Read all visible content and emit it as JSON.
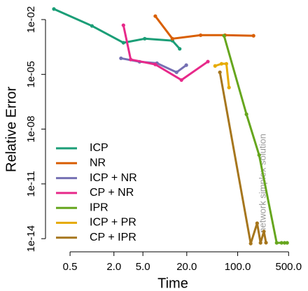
{
  "chart_data": {
    "type": "line",
    "x_label": "Time",
    "y_label": "Relative Error",
    "annotation": "network simplex solution",
    "xlog": true,
    "ylog": true,
    "xlim": [
      0.23,
      740
    ],
    "ylim": [
      1.9e-15,
      0.049
    ],
    "xticks": [
      0.5,
      {
        "value": 2,
        "label": "2.0"
      },
      {
        "value": 5,
        "label": "5.0"
      },
      {
        "value": 20,
        "label": "20.0"
      },
      {
        "value": 100,
        "label": "100.0"
      },
      {
        "value": 500,
        "label": "500.0"
      }
    ],
    "yticks": [
      {
        "value": 0.01,
        "label": "1e-02"
      },
      {
        "value": 1e-05,
        "label": "1e-05"
      },
      {
        "value": 1e-08,
        "label": "1e-08"
      },
      {
        "value": 1e-11,
        "label": "1e-11"
      },
      {
        "value": 1e-14,
        "label": "1e-14"
      }
    ],
    "legend": "left",
    "series": [
      {
        "name": "ICP",
        "color": "#1b9e77",
        "x": [
          0.3,
          1.0,
          2.7,
          5.3,
          12.7,
          16
        ],
        "values": [
          0.038,
          0.0045,
          0.00054,
          0.0009,
          0.0007,
          0.00025
        ]
      },
      {
        "name": "NR",
        "color": "#d95f02",
        "x": [
          7.4,
          12.7,
          31,
          67,
          165
        ],
        "values": [
          0.0155,
          0.0009,
          0.0014,
          0.0014,
          0.0013
        ]
      },
      {
        "name": "ICP + NR",
        "color": "#7570b3",
        "x": [
          2.5,
          4.5,
          7.8,
          14.5,
          19.7
        ],
        "values": [
          7.6e-05,
          4.9e-05,
          4.1e-05,
          1.3e-05,
          3.2e-05
        ]
      },
      {
        "name": "CP + NR",
        "color": "#e7298a",
        "x": [
          2.7,
          3.4,
          7.4,
          16.9,
          39
        ],
        "values": [
          0.0049,
          6.5e-05,
          3.5e-05,
          4.9e-06,
          5e-05
        ]
      },
      {
        "name": "IPR",
        "color": "#66a61e",
        "x": [
          65,
          132,
          197,
          343,
          400,
          440,
          478
        ],
        "values": [
          0.0013,
          6.5e-08,
          3.8e-10,
          5.9e-15,
          5.9e-15,
          5.9e-15,
          5.9e-15
        ]
      },
      {
        "name": "ICP + PR",
        "color": "#e6ab02",
        "x": [
          49,
          60,
          70,
          76
        ],
        "values": [
          2.9e-05,
          3.8e-05,
          3.8e-05,
          1.9e-06
        ]
      },
      {
        "name": "CP + IPR",
        "color": "#a6761d",
        "x": [
          57,
          151,
          185,
          206,
          229,
          245
        ],
        "values": [
          1.3e-05,
          5.4e-15,
          7e-14,
          5.9e-15,
          2.5e-14,
          6e-15
        ]
      }
    ]
  }
}
